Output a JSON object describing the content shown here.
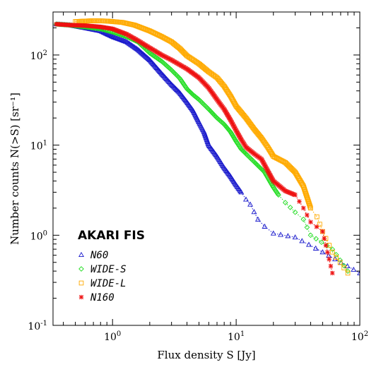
{
  "chart_data": {
    "type": "line",
    "title": "",
    "xlabel": "Flux density S [Jy]",
    "ylabel": "Number counts N(>S) [sr⁻¹]",
    "xscale": "log",
    "yscale": "log",
    "xlim": [
      0.33,
      100
    ],
    "ylim": [
      0.1,
      300
    ],
    "x_tick_labels": [
      {
        "base": "10",
        "exp": "0"
      },
      {
        "base": "10",
        "exp": "1"
      },
      {
        "base": "10",
        "exp": "2"
      }
    ],
    "y_tick_labels": [
      {
        "base": "10",
        "exp": "-1"
      },
      {
        "base": "10",
        "exp": "0"
      },
      {
        "base": "10",
        "exp": "1"
      },
      {
        "base": "10",
        "exp": "2"
      }
    ],
    "legend": {
      "title": "AKARI FIS",
      "placement": "bottom-left"
    },
    "series": [
      {
        "name": "N60",
        "color": "#1a1acc",
        "marker": "triangle",
        "x": [
          0.35,
          0.45,
          0.6,
          0.8,
          1.0,
          1.3,
          1.6,
          2.0,
          2.5,
          3.0,
          3.5,
          4.0,
          4.5,
          5.0,
          5.5,
          6.0,
          7.0,
          8.0,
          9.0,
          10.0,
          11.0,
          12.0,
          13.0,
          15.0,
          17.0,
          20.0,
          30.0,
          50.0,
          100.0
        ],
        "values": [
          220,
          215,
          200,
          185,
          160,
          140,
          115,
          88,
          62,
          47,
          38,
          30,
          24,
          18,
          14,
          10,
          7.5,
          5.6,
          4.5,
          3.6,
          3.0,
          2.5,
          2.2,
          1.5,
          1.25,
          1.05,
          0.95,
          0.65,
          0.38
        ]
      },
      {
        "name": "WIDE-S",
        "color": "#22dd22",
        "marker": "diamond",
        "x": [
          0.35,
          0.45,
          0.6,
          0.8,
          1.0,
          1.3,
          1.6,
          2.0,
          2.5,
          3.0,
          3.5,
          4.0,
          4.5,
          5.0,
          6.0,
          7.0,
          8.0,
          9.0,
          10.0,
          11.0,
          12.0,
          14.0,
          17.0,
          20.0,
          22.0,
          25.0,
          30.0,
          35.0,
          40.0,
          60.0,
          80.0
        ],
        "values": [
          220,
          215,
          205,
          195,
          180,
          160,
          140,
          105,
          85,
          68,
          55,
          42,
          36,
          32,
          25,
          20,
          17,
          14,
          11,
          9.0,
          8.0,
          6.5,
          5.0,
          3.4,
          2.8,
          2.3,
          1.8,
          1.5,
          1.0,
          0.7,
          0.4
        ]
      },
      {
        "name": "WIDE-L",
        "color": "#ffaa00",
        "marker": "square",
        "x": [
          0.5,
          0.7,
          0.9,
          1.2,
          1.5,
          2.0,
          2.5,
          3.0,
          3.5,
          4.0,
          5.0,
          6.0,
          7.0,
          8.0,
          9.0,
          10.0,
          12.0,
          14.0,
          16.0,
          18.0,
          20.0,
          25.0,
          30.0,
          35.0,
          40.0,
          45.0,
          50.0,
          60.0,
          80.0
        ],
        "values": [
          235,
          240,
          238,
          230,
          215,
          185,
          160,
          140,
          118,
          98,
          80,
          65,
          56,
          45,
          35,
          27,
          20,
          15,
          12,
          9.5,
          7.5,
          6.4,
          5.0,
          3.5,
          2.0,
          1.6,
          1.1,
          0.65,
          0.38
        ]
      },
      {
        "name": "N160",
        "color": "#ee1111",
        "marker": "asterisk",
        "x": [
          0.35,
          0.45,
          0.6,
          0.8,
          1.0,
          1.3,
          1.6,
          2.0,
          2.5,
          3.0,
          4.0,
          5.0,
          6.0,
          7.0,
          8.0,
          9.0,
          10.0,
          11.0,
          12.0,
          14.0,
          16.0,
          18.0,
          20.0,
          25.0,
          30.0,
          35.0,
          40.0,
          50.0,
          60.0
        ],
        "values": [
          220,
          215,
          212,
          205,
          195,
          170,
          145,
          120,
          100,
          88,
          70,
          56,
          43,
          32,
          25,
          19,
          14.5,
          11.5,
          9.5,
          8.0,
          7.0,
          5.2,
          4.0,
          3.1,
          2.8,
          2.0,
          1.4,
          1.1,
          0.38
        ]
      }
    ]
  }
}
